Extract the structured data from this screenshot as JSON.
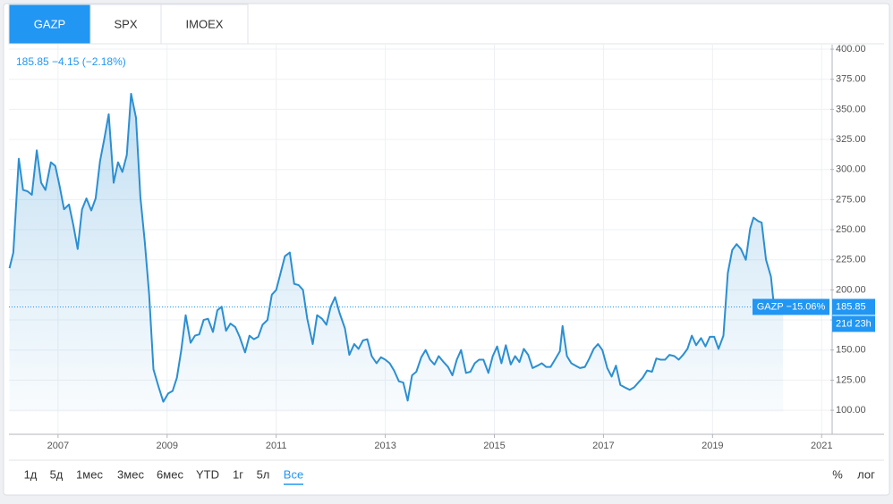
{
  "tabs": [
    "GAZP",
    "SPX",
    "IMOEX"
  ],
  "legend": "185.85 −4.15 (−2.18%)",
  "chart_data": {
    "type": "line",
    "x": [
      2006.11,
      2006.18,
      2006.28,
      2006.36,
      2006.44,
      2006.52,
      2006.61,
      2006.69,
      2006.77,
      2006.87,
      2006.95,
      2007.03,
      2007.11,
      2007.2,
      2007.28,
      2007.36,
      2007.44,
      2007.52,
      2007.61,
      2007.69,
      2007.77,
      2007.85,
      2007.93,
      2008.02,
      2008.1,
      2008.18,
      2008.26,
      2008.34,
      2008.43,
      2008.51,
      2008.59,
      2008.67,
      2008.75,
      2008.84,
      2008.93,
      2009.02,
      2009.1,
      2009.18,
      2009.26,
      2009.34,
      2009.43,
      2009.51,
      2009.59,
      2009.67,
      2009.75,
      2009.84,
      2009.92,
      2010.0,
      2010.08,
      2010.16,
      2010.25,
      2010.33,
      2010.43,
      2010.51,
      2010.59,
      2010.67,
      2010.75,
      2010.84,
      2010.92,
      2011.0,
      2011.08,
      2011.16,
      2011.25,
      2011.33,
      2011.41,
      2011.49,
      2011.57,
      2011.67,
      2011.75,
      2011.84,
      2011.92,
      2012.0,
      2012.08,
      2012.16,
      2012.26,
      2012.34,
      2012.43,
      2012.51,
      2012.59,
      2012.67,
      2012.75,
      2012.84,
      2012.92,
      2013.0,
      2013.08,
      2013.16,
      2013.25,
      2013.33,
      2013.41,
      2013.49,
      2013.57,
      2013.66,
      2013.74,
      2013.82,
      2013.9,
      2013.98,
      2014.07,
      2014.15,
      2014.23,
      2014.31,
      2014.39,
      2014.48,
      2014.56,
      2014.64,
      2014.72,
      2014.8,
      2014.89,
      2014.97,
      2015.05,
      2015.13,
      2015.21,
      2015.3,
      2015.38,
      2015.46,
      2015.54,
      2015.62,
      2015.7,
      2015.79,
      2015.87,
      2015.95,
      2016.03,
      2016.11,
      2016.2,
      2016.25,
      2016.33,
      2016.41,
      2016.49,
      2016.57,
      2016.66,
      2016.74,
      2016.82,
      2016.9,
      2016.98,
      2017.07,
      2017.15,
      2017.23,
      2017.31,
      2017.39,
      2017.48,
      2017.56,
      2017.64,
      2017.72,
      2017.8,
      2017.89,
      2017.97,
      2018.05,
      2018.13,
      2018.21,
      2018.3,
      2018.38,
      2018.46,
      2018.54,
      2018.62,
      2018.7,
      2018.79,
      2018.87,
      2018.95,
      2019.03,
      2019.11,
      2019.2,
      2019.28,
      2019.36,
      2019.44,
      2019.52,
      2019.61,
      2019.69,
      2019.75,
      2019.84,
      2019.9,
      2019.98,
      2020.07,
      2020.13
    ],
    "series": [
      {
        "name": "GAZP",
        "color": "#2b8fd2",
        "values": [
          218,
          231,
          309,
          283,
          282,
          279,
          316,
          289,
          283,
          306,
          303,
          286,
          267,
          271,
          254,
          234,
          267,
          276,
          266,
          276,
          307,
          326,
          346,
          289,
          306,
          298,
          312,
          363,
          343,
          277,
          240,
          196,
          134,
          120,
          107,
          114,
          116,
          127,
          150,
          179,
          156,
          162,
          163,
          175,
          176,
          165,
          183,
          186,
          166,
          172,
          169,
          161,
          148,
          162,
          159,
          161,
          171,
          175,
          196,
          200,
          214,
          228,
          231,
          205,
          204,
          200,
          176,
          155,
          179,
          176,
          171,
          186,
          194,
          181,
          168,
          146,
          155,
          151,
          158,
          159,
          145,
          139,
          144,
          142,
          139,
          133,
          124,
          123,
          108,
          129,
          132,
          144,
          150,
          142,
          138,
          145,
          140,
          136,
          129,
          142,
          150,
          131,
          132,
          139,
          142,
          142,
          131,
          145,
          153,
          139,
          154,
          138,
          145,
          140,
          151,
          146,
          135,
          137,
          139,
          136,
          136,
          142,
          149,
          170,
          145,
          139,
          137,
          135,
          136,
          143,
          151,
          155,
          150,
          135,
          128,
          137,
          121,
          119,
          117,
          119,
          123,
          127,
          133,
          132,
          143,
          142,
          142,
          146,
          145,
          142,
          146,
          151,
          162,
          154,
          160,
          153,
          161,
          161,
          151,
          162,
          214,
          233,
          238,
          234,
          225,
          251,
          260,
          257,
          256,
          225,
          211,
          185
        ]
      }
    ],
    "xlim": [
      2006.1,
      2021.16
    ],
    "ylim": [
      80,
      405
    ],
    "xticks": [
      2007,
      2009,
      2011,
      2013,
      2015,
      2017,
      2019,
      2021
    ],
    "yticks": [
      {
        "value": 100,
        "label": "100.00"
      },
      {
        "value": 125,
        "label": "125.00"
      },
      {
        "value": 150,
        "label": "150.00"
      },
      {
        "value": 175,
        "label": "175.00"
      },
      {
        "value": 200,
        "label": "200.00"
      },
      {
        "value": 225,
        "label": "225.00"
      },
      {
        "value": 250,
        "label": "250.00"
      },
      {
        "value": 275,
        "label": "275.00"
      },
      {
        "value": 300,
        "label": "300.00"
      },
      {
        "value": 325,
        "label": "325.00"
      },
      {
        "value": 350,
        "label": "350.00"
      },
      {
        "value": 375,
        "label": "375.00"
      },
      {
        "value": 400,
        "label": "400.00"
      }
    ],
    "grid": true,
    "last_price": 185.85,
    "price_badge": "GAZP −15.06%",
    "countdown": "21d 23h"
  },
  "range_buttons": [
    "1д",
    "5д",
    "1мес",
    "3мес",
    "6мес",
    "YTD",
    "1г",
    "5л",
    "Все"
  ],
  "active_range": 8,
  "scale_buttons": [
    "%",
    "лог"
  ]
}
